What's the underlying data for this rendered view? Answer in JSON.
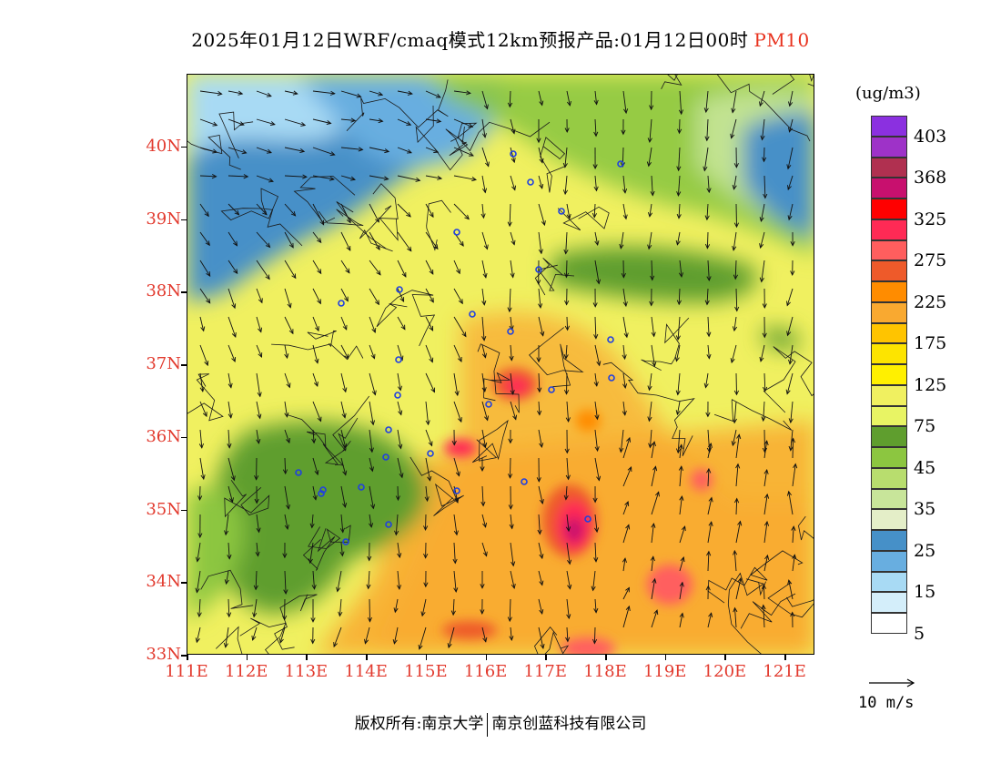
{
  "title": {
    "text": "2025年01月12日WRF/cmaq模式12km预报产品:01月12日00时",
    "pollutant": "PM10"
  },
  "map": {
    "lat_labels": [
      "40N",
      "39N",
      "38N",
      "37N",
      "36N",
      "35N",
      "34N",
      "33N"
    ],
    "lon_labels": [
      "111E",
      "112E",
      "113E",
      "114E",
      "115E",
      "116E",
      "117E",
      "118E",
      "119E",
      "120E",
      "121E"
    ],
    "lon_range": [
      111,
      121.5
    ],
    "lat_range": [
      33,
      41
    ],
    "station_icon": "circle-marker-icon",
    "wind_icon": "wind-arrow-icon"
  },
  "legend": {
    "unit": "(ug/m3)",
    "labels": [
      "403",
      "368",
      "325",
      "275",
      "225",
      "175",
      "125",
      "75",
      "45",
      "35",
      "25",
      "15",
      "5"
    ],
    "colors": [
      "#8b30e0",
      "#9e32c8",
      "#b03050",
      "#c8106e",
      "#ff0000",
      "#ff2a55",
      "#ff5e5e",
      "#ee5a2a",
      "#ff8c00",
      "#f9a930",
      "#ffc400",
      "#fde400",
      "#fff000",
      "#f0f060",
      "#e8f464",
      "#5f9e2e",
      "#8cc640",
      "#b8dd6e",
      "#c8e59a",
      "#e4eec8",
      "#4690c8",
      "#68aee0",
      "#a8daf4",
      "#d4eefa",
      "#ffffff"
    ]
  },
  "wind_scale": {
    "label": "10 m/s"
  },
  "footer": {
    "copyright": "版权所有:南京大学",
    "company": "南京创蓝科技有限公司"
  }
}
